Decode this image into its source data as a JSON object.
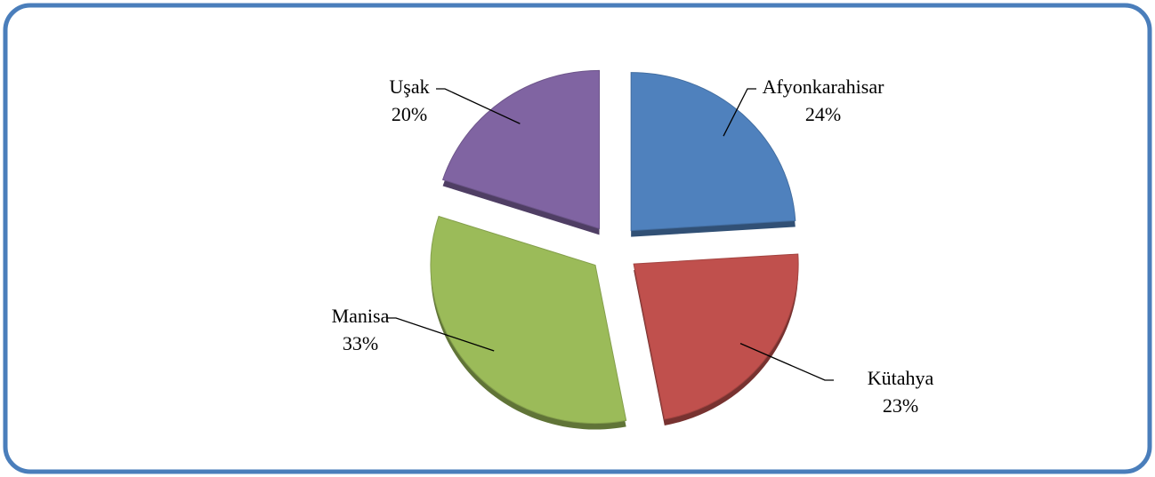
{
  "chart_data": {
    "type": "pie",
    "categories": [
      "Afyonkarahisar",
      "Kütahya",
      "Manisa",
      "Uşak"
    ],
    "values": [
      24,
      23,
      33,
      20
    ],
    "value_labels": [
      "24%",
      "23%",
      "33%",
      "20%"
    ],
    "colors": [
      "#4f81bd",
      "#c0504d",
      "#9bbb59",
      "#8064a2"
    ]
  }
}
